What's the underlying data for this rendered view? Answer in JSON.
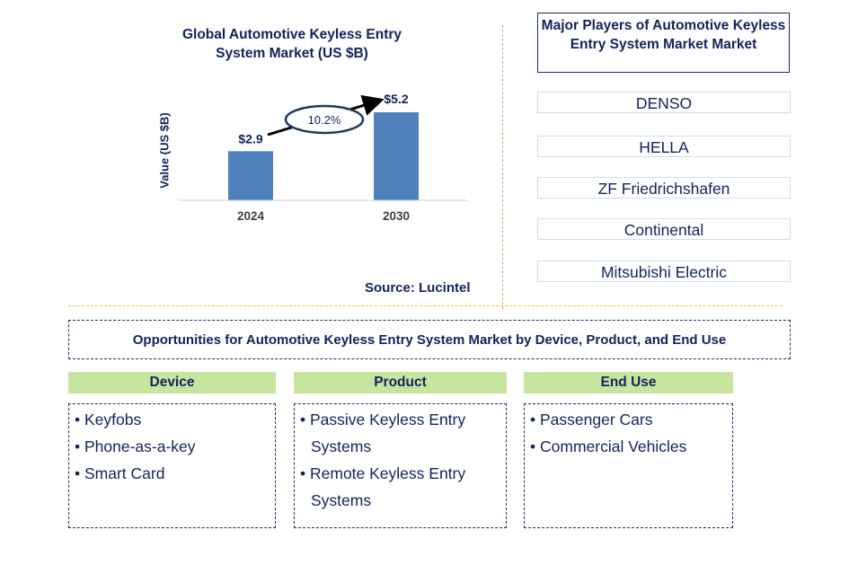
{
  "chart_data": {
    "type": "bar",
    "title": "Global Automotive Keyless Entry System Market (US $B)",
    "ylabel": "Value (US $B)",
    "xlabel": "",
    "categories": [
      "2024",
      "2030"
    ],
    "values": [
      2.9,
      5.2
    ],
    "data_labels": [
      "$2.9",
      "$5.2"
    ],
    "annotation": "10.2%",
    "bar_color": "#4f81bd",
    "ylim": [
      0,
      5.2
    ]
  },
  "source": "Source: Lucintel",
  "players": {
    "title": "Major Players of Automotive Keyless Entry System Market Market",
    "items": [
      "DENSO",
      "HELLA",
      "ZF Friedrichshafen",
      "Continental",
      "Mitsubishi Electric"
    ]
  },
  "opportunities": {
    "title": "Opportunities for Automotive Keyless Entry System Market by Device, Product, and End Use",
    "columns": [
      {
        "header": "Device",
        "items": [
          "Keyfobs",
          "Phone-as-a-key",
          "Smart Card"
        ]
      },
      {
        "header": "Product",
        "items": [
          "Passive Keyless Entry Systems",
          "Remote Keyless Entry Systems"
        ]
      },
      {
        "header": "End Use",
        "items": [
          "Passenger Cars",
          "Commercial Vehicles"
        ]
      }
    ]
  }
}
